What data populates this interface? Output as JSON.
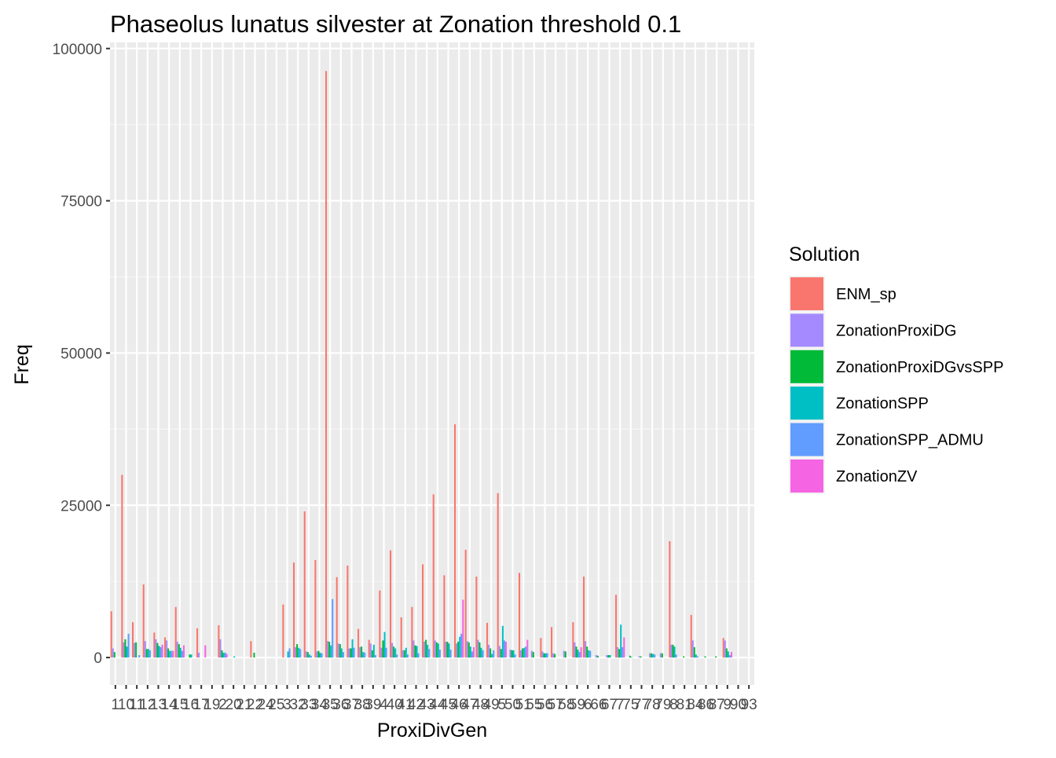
{
  "chart_data": {
    "type": "bar",
    "title": "Phaseolus lunatus silvester at Zonation threshold 0.1",
    "xlabel": "ProxiDivGen",
    "ylabel": "Freq",
    "ylim": [
      -4500,
      101000
    ],
    "y_ticks": [
      0,
      25000,
      50000,
      75000,
      100000
    ],
    "y_tick_labels": [
      "0",
      "25000",
      "50000",
      "75000",
      "100000"
    ],
    "grid": true,
    "legend_position": "right",
    "legend_title": "Solution",
    "x_tick_labels": [
      "1",
      "10",
      "11",
      "12",
      "13",
      "14",
      "15",
      "16",
      "17",
      "19",
      "2",
      "20",
      "21",
      "22",
      "24",
      "25",
      "3",
      "32",
      "33",
      "34",
      "35",
      "36",
      "37",
      "38",
      "39",
      "4",
      "40",
      "41",
      "42",
      "43",
      "44",
      "45",
      "46",
      "47",
      "48",
      "49",
      "5",
      "50",
      "51",
      "55",
      "56",
      "57",
      "58",
      "59",
      "6",
      "66",
      "67",
      "7",
      "75",
      "77",
      "78",
      "79",
      "8",
      "81",
      "84",
      "86",
      "87",
      "9",
      "90",
      "93"
    ],
    "series": [
      {
        "name": "ENM_sp",
        "color": "#F8766D",
        "values": [
          7600,
          30000,
          5800,
          12000,
          4100,
          3300,
          8300,
          0,
          4800,
          0,
          5300,
          0,
          0,
          2700,
          0,
          0,
          8700,
          15600,
          24000,
          16000,
          96300,
          13200,
          15100,
          4700,
          2900,
          11000,
          17600,
          6600,
          8300,
          15300,
          26800,
          13500,
          38300,
          17700,
          13300,
          5700,
          27000,
          0,
          13900,
          0,
          3200,
          5000,
          0,
          5800,
          13300,
          0,
          0,
          10300,
          0,
          0,
          0,
          0,
          19100,
          0,
          7000,
          0,
          0,
          3200,
          0,
          0
        ]
      },
      {
        "name": "ZonationProxiDG",
        "color": "#A58AFF",
        "values": [
          1500,
          2500,
          2400,
          2700,
          3000,
          2800,
          2600,
          0,
          800,
          0,
          3000,
          0,
          0,
          0,
          0,
          0,
          0,
          1700,
          1000,
          1000,
          2700,
          2300,
          1500,
          1700,
          2300,
          1600,
          2400,
          1200,
          2800,
          2600,
          2800,
          2600,
          2300,
          2700,
          2900,
          2100,
          1900,
          1300,
          1200,
          1100,
          1000,
          700,
          1100,
          2500,
          2700,
          400,
          400,
          1700,
          0,
          200,
          700,
          700,
          2100,
          0,
          2800,
          0,
          0,
          2800,
          0,
          0
        ]
      },
      {
        "name": "ZonationProxiDGvsSPP",
        "color": "#00BA38",
        "values": [
          900,
          3000,
          2500,
          1400,
          2400,
          1500,
          2200,
          500,
          0,
          0,
          1200,
          0,
          0,
          800,
          0,
          0,
          0,
          2200,
          900,
          1100,
          2600,
          2200,
          1500,
          1800,
          1200,
          2800,
          1800,
          1200,
          2000,
          2900,
          2500,
          2600,
          2600,
          2500,
          2500,
          1500,
          1400,
          1200,
          1500,
          900,
          700,
          600,
          1000,
          1800,
          1800,
          300,
          400,
          1400,
          300,
          200,
          700,
          700,
          2100,
          200,
          1700,
          200,
          200,
          1500,
          0,
          0
        ]
      },
      {
        "name": "ZonationSPP",
        "color": "#00BFC4",
        "values": [
          0,
          1800,
          0,
          1400,
          1900,
          1100,
          1600,
          500,
          0,
          0,
          800,
          200,
          0,
          0,
          0,
          0,
          1000,
          1600,
          500,
          800,
          2000,
          1500,
          3000,
          900,
          2100,
          4200,
          1500,
          1600,
          1900,
          2100,
          2300,
          2300,
          3400,
          1800,
          1600,
          600,
          5200,
          1200,
          1600,
          0,
          700,
          0,
          0,
          1300,
          1200,
          0,
          400,
          5400,
          100,
          0,
          600,
          0,
          1800,
          0,
          500,
          0,
          0,
          1000,
          0,
          0
        ]
      },
      {
        "name": "ZonationSPP_ADMU",
        "color": "#619CFF",
        "values": [
          0,
          3900,
          400,
          1200,
          1700,
          1100,
          1100,
          0,
          0,
          0,
          800,
          0,
          0,
          0,
          0,
          0,
          1500,
          1400,
          300,
          700,
          9600,
          900,
          1600,
          800,
          400,
          1600,
          500,
          500,
          700,
          1400,
          1300,
          1300,
          3900,
          1000,
          1200,
          1200,
          2800,
          500,
          1800,
          0,
          700,
          0,
          0,
          900,
          1100,
          0,
          0,
          1700,
          0,
          0,
          500,
          0,
          500,
          0,
          200,
          0,
          0,
          400,
          0,
          0
        ]
      },
      {
        "name": "ZonationZV",
        "color": "#F564E3",
        "values": [
          0,
          0,
          0,
          0,
          2100,
          1100,
          2000,
          0,
          2000,
          0,
          600,
          0,
          0,
          0,
          0,
          0,
          0,
          0,
          0,
          0,
          0,
          0,
          0,
          0,
          0,
          0,
          0,
          0,
          0,
          0,
          0,
          0,
          9500,
          1700,
          0,
          0,
          2600,
          0,
          2900,
          0,
          0,
          0,
          0,
          1700,
          0,
          0,
          0,
          3300,
          0,
          0,
          0,
          0,
          0,
          0,
          0,
          0,
          0,
          900,
          0,
          0
        ]
      }
    ]
  }
}
